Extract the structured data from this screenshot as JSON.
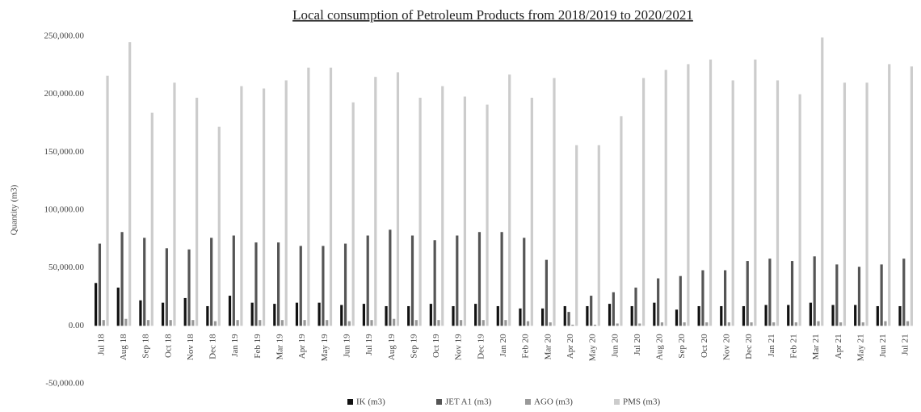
{
  "chart_data": {
    "type": "bar",
    "title": "Local consumption of Petroleum Products from 2018/2019 to 2020/2021",
    "ylabel": "Quantity (m3)",
    "categories": [
      "Jul 18",
      "Aug 18",
      "Sep 18",
      "Oct 18",
      "Nov 18",
      "Dec 18",
      "Jan 19",
      "Feb 19",
      "Mar 19",
      "Apr 19",
      "May 19",
      "Jun 19",
      "Jul 19",
      "Aug 19",
      "Sep 19",
      "Oct 19",
      "Nov 19",
      "Dec 19",
      "Jan 20",
      "Feb 20",
      "Mar 20",
      "Apr 20",
      "May 20",
      "Jun 20",
      "Jul 20",
      "Aug 20",
      "Sep 20",
      "Oct 20",
      "Nov 20",
      "Dec 20",
      "Jan 21",
      "Feb 21",
      "Mar 21",
      "Apr 21",
      "May 21",
      "Jun 21",
      "Jul 21"
    ],
    "series": [
      {
        "name": "IK (m3)",
        "color": "#111111",
        "values": [
          37000,
          33000,
          22000,
          20000,
          24000,
          17000,
          26000,
          20000,
          19000,
          20000,
          20000,
          18000,
          19000,
          17000,
          17000,
          19000,
          17000,
          19000,
          17000,
          15000,
          15000,
          17000,
          17000,
          19000,
          17000,
          20000,
          14000,
          17000,
          17000,
          17000,
          18000,
          18000,
          20000,
          18000,
          18000,
          17000,
          17000
        ]
      },
      {
        "name": "JET A1 (m3)",
        "color": "#555555",
        "values": [
          71000,
          81000,
          76000,
          67000,
          66000,
          76000,
          78000,
          72000,
          72000,
          69000,
          69000,
          71000,
          78000,
          83000,
          78000,
          74000,
          78000,
          81000,
          81000,
          76000,
          57000,
          12000,
          26000,
          29000,
          33000,
          41000,
          43000,
          48000,
          48000,
          56000,
          58000,
          56000,
          60000,
          53000,
          51000,
          53000,
          58000
        ]
      },
      {
        "name": "AGO (m3)",
        "color": "#999999",
        "values": [
          5000,
          6000,
          5000,
          5000,
          5000,
          4000,
          5000,
          5000,
          5000,
          5000,
          5000,
          4000,
          5000,
          6000,
          5000,
          5000,
          5000,
          5000,
          5000,
          4000,
          3000,
          1000,
          1000,
          2000,
          2000,
          3000,
          3000,
          3000,
          3000,
          3000,
          3000,
          3000,
          4000,
          3000,
          3000,
          4000,
          4000
        ]
      },
      {
        "name": "PMS (m3)",
        "color": "#cccccc",
        "values": [
          216000,
          245000,
          184000,
          210000,
          197000,
          172000,
          207000,
          205000,
          212000,
          223000,
          223000,
          193000,
          215000,
          219000,
          197000,
          207000,
          198000,
          191000,
          217000,
          197000,
          214000,
          156000,
          156000,
          181000,
          214000,
          221000,
          226000,
          230000,
          212000,
          230000,
          212000,
          200000,
          249000,
          210000,
          210000,
          226000,
          224000
        ]
      }
    ],
    "ylim": [
      -50000,
      250000
    ],
    "yticks": [
      {
        "value": -50000,
        "label": "-50,000.00"
      },
      {
        "value": 0,
        "label": "0.00"
      },
      {
        "value": 50000,
        "label": "50,000.00"
      },
      {
        "value": 100000,
        "label": "100,000.00"
      },
      {
        "value": 150000,
        "label": "150,000.00"
      },
      {
        "value": 200000,
        "label": "200,000.00"
      },
      {
        "value": 250000,
        "label": "250,000.00"
      }
    ],
    "grid": false
  }
}
